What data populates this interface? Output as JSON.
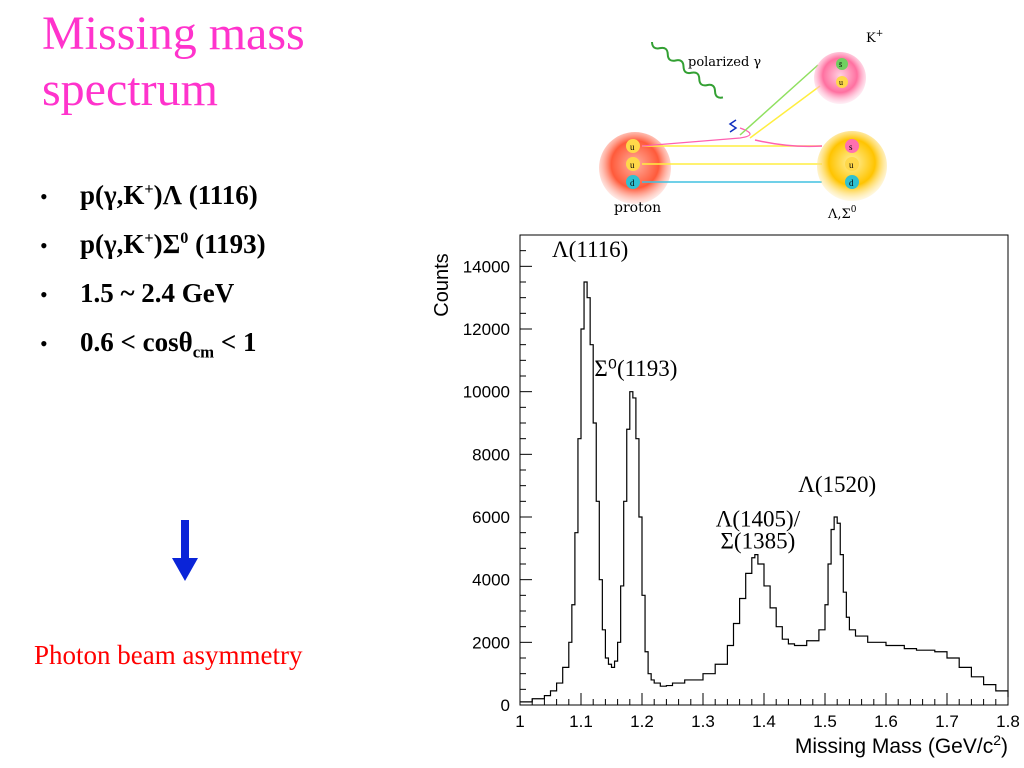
{
  "slide": {
    "title": "Missing mass spectrum",
    "bullets": [
      {
        "pre": "p(γ,K",
        "sup": "+",
        "post": ")Λ  (1116)"
      },
      {
        "pre": "p(γ,K",
        "sup": "+",
        "mid": ")Σ",
        "sup2": "0",
        "post": " (1193)"
      },
      {
        "text": "1.5 ~ 2.4 GeV"
      },
      {
        "pre": "0.6 < cosθ",
        "sub": "cm",
        "post": " < 1"
      }
    ],
    "arrow_icon": "down-arrow-icon",
    "subtitle": "Photon beam asymmetry"
  },
  "diagram": {
    "gamma_label": "polarized  γ",
    "kaon_label": "K",
    "kaon_sup": "+",
    "proton_label": "proton",
    "hyperon_label": "Λ,Σ",
    "hyperon_sup": "0",
    "proton_quarks": [
      "u",
      "u",
      "d"
    ],
    "kaon_quarks": [
      "s̄",
      "u"
    ],
    "hyperon_quarks": [
      "s",
      "u",
      "d"
    ]
  },
  "chart_data": {
    "type": "line",
    "style": "histogram-step",
    "ylabel": "Counts",
    "xlabel": "Missing Mass (GeV/c",
    "xlabel_sup": "2",
    "xlabel_end": ")",
    "xlim": [
      1.0,
      1.8
    ],
    "ylim": [
      0,
      15000
    ],
    "xticks": [
      "1",
      "1.1",
      "1.2",
      "1.3",
      "1.4",
      "1.5",
      "1.6",
      "1.7",
      "1.8"
    ],
    "yticks": [
      "0",
      "2000",
      "4000",
      "6000",
      "8000",
      "10000",
      "12000",
      "14000"
    ],
    "annotations": [
      {
        "text": "Λ(1116)",
        "x": 1.115,
        "y": 14300
      },
      {
        "text": "Σ⁰(1193)",
        "x": 1.19,
        "y": 10500
      },
      {
        "text": "Λ(1520)",
        "x": 1.52,
        "y": 6800
      },
      {
        "text": "Λ(1405)/",
        "x": 1.39,
        "y": 5700
      },
      {
        "text": "Σ(1385)",
        "x": 1.39,
        "y": 5000
      }
    ],
    "series": [
      {
        "x": [
          1.0,
          1.02,
          1.04,
          1.05,
          1.06,
          1.07,
          1.08,
          1.085,
          1.09,
          1.095,
          1.1,
          1.105,
          1.11,
          1.115,
          1.12,
          1.125,
          1.13,
          1.135,
          1.14,
          1.145,
          1.15,
          1.155,
          1.16,
          1.165,
          1.17,
          1.175,
          1.18,
          1.185,
          1.19,
          1.195,
          1.2,
          1.205,
          1.21,
          1.215,
          1.22,
          1.23,
          1.24,
          1.25,
          1.27,
          1.3,
          1.32,
          1.34,
          1.35,
          1.36,
          1.37,
          1.38,
          1.385,
          1.39,
          1.4,
          1.41,
          1.42,
          1.43,
          1.44,
          1.45,
          1.47,
          1.49,
          1.5,
          1.505,
          1.51,
          1.515,
          1.52,
          1.525,
          1.53,
          1.535,
          1.54,
          1.55,
          1.57,
          1.6,
          1.63,
          1.65,
          1.68,
          1.7,
          1.72,
          1.74,
          1.76,
          1.78,
          1.8
        ],
        "y": [
          100,
          200,
          300,
          450,
          700,
          1200,
          2000,
          3200,
          5500,
          8500,
          12000,
          13500,
          13000,
          11500,
          9000,
          6500,
          4000,
          2400,
          1500,
          1300,
          1200,
          1400,
          2000,
          3800,
          6500,
          8800,
          10000,
          9800,
          8500,
          6000,
          3500,
          1700,
          1000,
          800,
          700,
          600,
          620,
          700,
          800,
          1000,
          1300,
          1900,
          2600,
          3400,
          4200,
          4700,
          4800,
          4500,
          3800,
          3100,
          2500,
          2100,
          1950,
          1900,
          2050,
          2400,
          3200,
          4500,
          5600,
          6000,
          5800,
          4800,
          3600,
          2800,
          2400,
          2200,
          2000,
          1900,
          1800,
          1750,
          1700,
          1500,
          1200,
          900,
          650,
          450,
          250
        ]
      }
    ]
  }
}
